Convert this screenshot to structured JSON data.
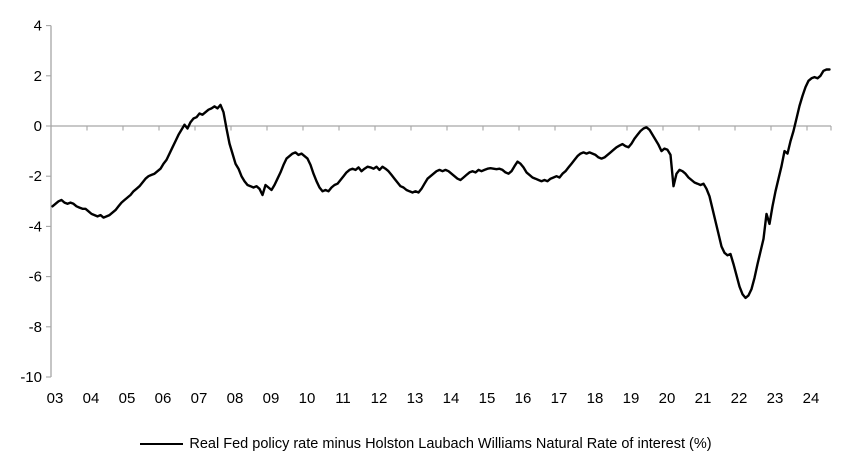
{
  "chart_data": {
    "type": "line",
    "title": "",
    "legend_position": "bottom",
    "grid": "zero-line-only",
    "axis_color": "#a6a6a6",
    "text_color": "#000000",
    "ylim": [
      -10,
      4
    ],
    "y_ticks": [
      4,
      2,
      0,
      -2,
      -4,
      -6,
      -8,
      -10
    ],
    "x_tick_labels": [
      "03",
      "04",
      "05",
      "06",
      "07",
      "08",
      "09",
      "10",
      "11",
      "12",
      "13",
      "14",
      "15",
      "16",
      "17",
      "18",
      "19",
      "20",
      "21",
      "22",
      "23",
      "24"
    ],
    "x_range": "monthly, Jan 2003 - Aug 2024",
    "series": [
      {
        "name": "Real Fed policy rate minus Holston Laubach Williams Natural Rate of interest (%)",
        "color": "#000000",
        "start_year": 2003,
        "frequency": "monthly",
        "values": [
          -3.2,
          -3.1,
          -3.0,
          -2.95,
          -3.05,
          -3.1,
          -3.05,
          -3.1,
          -3.2,
          -3.25,
          -3.3,
          -3.3,
          -3.4,
          -3.5,
          -3.55,
          -3.6,
          -3.55,
          -3.65,
          -3.6,
          -3.55,
          -3.45,
          -3.35,
          -3.2,
          -3.05,
          -2.95,
          -2.85,
          -2.75,
          -2.6,
          -2.5,
          -2.4,
          -2.25,
          -2.1,
          -2.0,
          -1.95,
          -1.9,
          -1.8,
          -1.7,
          -1.5,
          -1.35,
          -1.1,
          -0.85,
          -0.6,
          -0.35,
          -0.15,
          0.05,
          -0.1,
          0.15,
          0.3,
          0.35,
          0.5,
          0.45,
          0.55,
          0.65,
          0.7,
          0.78,
          0.7,
          0.84,
          0.55,
          -0.1,
          -0.7,
          -1.1,
          -1.5,
          -1.7,
          -2.0,
          -2.2,
          -2.35,
          -2.4,
          -2.45,
          -2.4,
          -2.5,
          -2.75,
          -2.35,
          -2.45,
          -2.55,
          -2.35,
          -2.1,
          -1.85,
          -1.55,
          -1.3,
          -1.2,
          -1.1,
          -1.05,
          -1.15,
          -1.1,
          -1.2,
          -1.3,
          -1.55,
          -1.9,
          -2.2,
          -2.45,
          -2.6,
          -2.55,
          -2.6,
          -2.45,
          -2.35,
          -2.3,
          -2.15,
          -2.0,
          -1.85,
          -1.75,
          -1.7,
          -1.75,
          -1.65,
          -1.8,
          -1.7,
          -1.62,
          -1.65,
          -1.7,
          -1.62,
          -1.75,
          -1.62,
          -1.7,
          -1.8,
          -1.95,
          -2.1,
          -2.25,
          -2.4,
          -2.45,
          -2.55,
          -2.6,
          -2.65,
          -2.6,
          -2.65,
          -2.5,
          -2.3,
          -2.1,
          -2.0,
          -1.9,
          -1.8,
          -1.75,
          -1.8,
          -1.75,
          -1.8,
          -1.9,
          -2.0,
          -2.1,
          -2.15,
          -2.05,
          -1.95,
          -1.85,
          -1.8,
          -1.85,
          -1.75,
          -1.8,
          -1.75,
          -1.7,
          -1.68,
          -1.7,
          -1.72,
          -1.7,
          -1.75,
          -1.85,
          -1.9,
          -1.8,
          -1.6,
          -1.42,
          -1.5,
          -1.65,
          -1.85,
          -1.95,
          -2.05,
          -2.1,
          -2.15,
          -2.2,
          -2.15,
          -2.2,
          -2.1,
          -2.05,
          -2.0,
          -2.05,
          -1.9,
          -1.8,
          -1.65,
          -1.5,
          -1.35,
          -1.2,
          -1.1,
          -1.05,
          -1.1,
          -1.05,
          -1.1,
          -1.15,
          -1.25,
          -1.3,
          -1.25,
          -1.15,
          -1.05,
          -0.95,
          -0.85,
          -0.78,
          -0.72,
          -0.8,
          -0.85,
          -0.7,
          -0.5,
          -0.35,
          -0.2,
          -0.1,
          -0.05,
          -0.15,
          -0.35,
          -0.55,
          -0.75,
          -1.0,
          -0.9,
          -0.95,
          -1.15,
          -2.4,
          -1.9,
          -1.75,
          -1.8,
          -1.9,
          -2.05,
          -2.15,
          -2.25,
          -2.3,
          -2.35,
          -2.3,
          -2.5,
          -2.8,
          -3.3,
          -3.8,
          -4.3,
          -4.8,
          -5.05,
          -5.15,
          -5.1,
          -5.5,
          -5.95,
          -6.4,
          -6.7,
          -6.85,
          -6.75,
          -6.5,
          -6.05,
          -5.5,
          -5.0,
          -4.5,
          -3.5,
          -3.9,
          -3.2,
          -2.6,
          -2.1,
          -1.6,
          -1.0,
          -1.1,
          -0.6,
          -0.2,
          0.3,
          0.8,
          1.2,
          1.55,
          1.8,
          1.9,
          1.95,
          1.9,
          2.0,
          2.2,
          2.25,
          2.25
        ]
      }
    ]
  }
}
